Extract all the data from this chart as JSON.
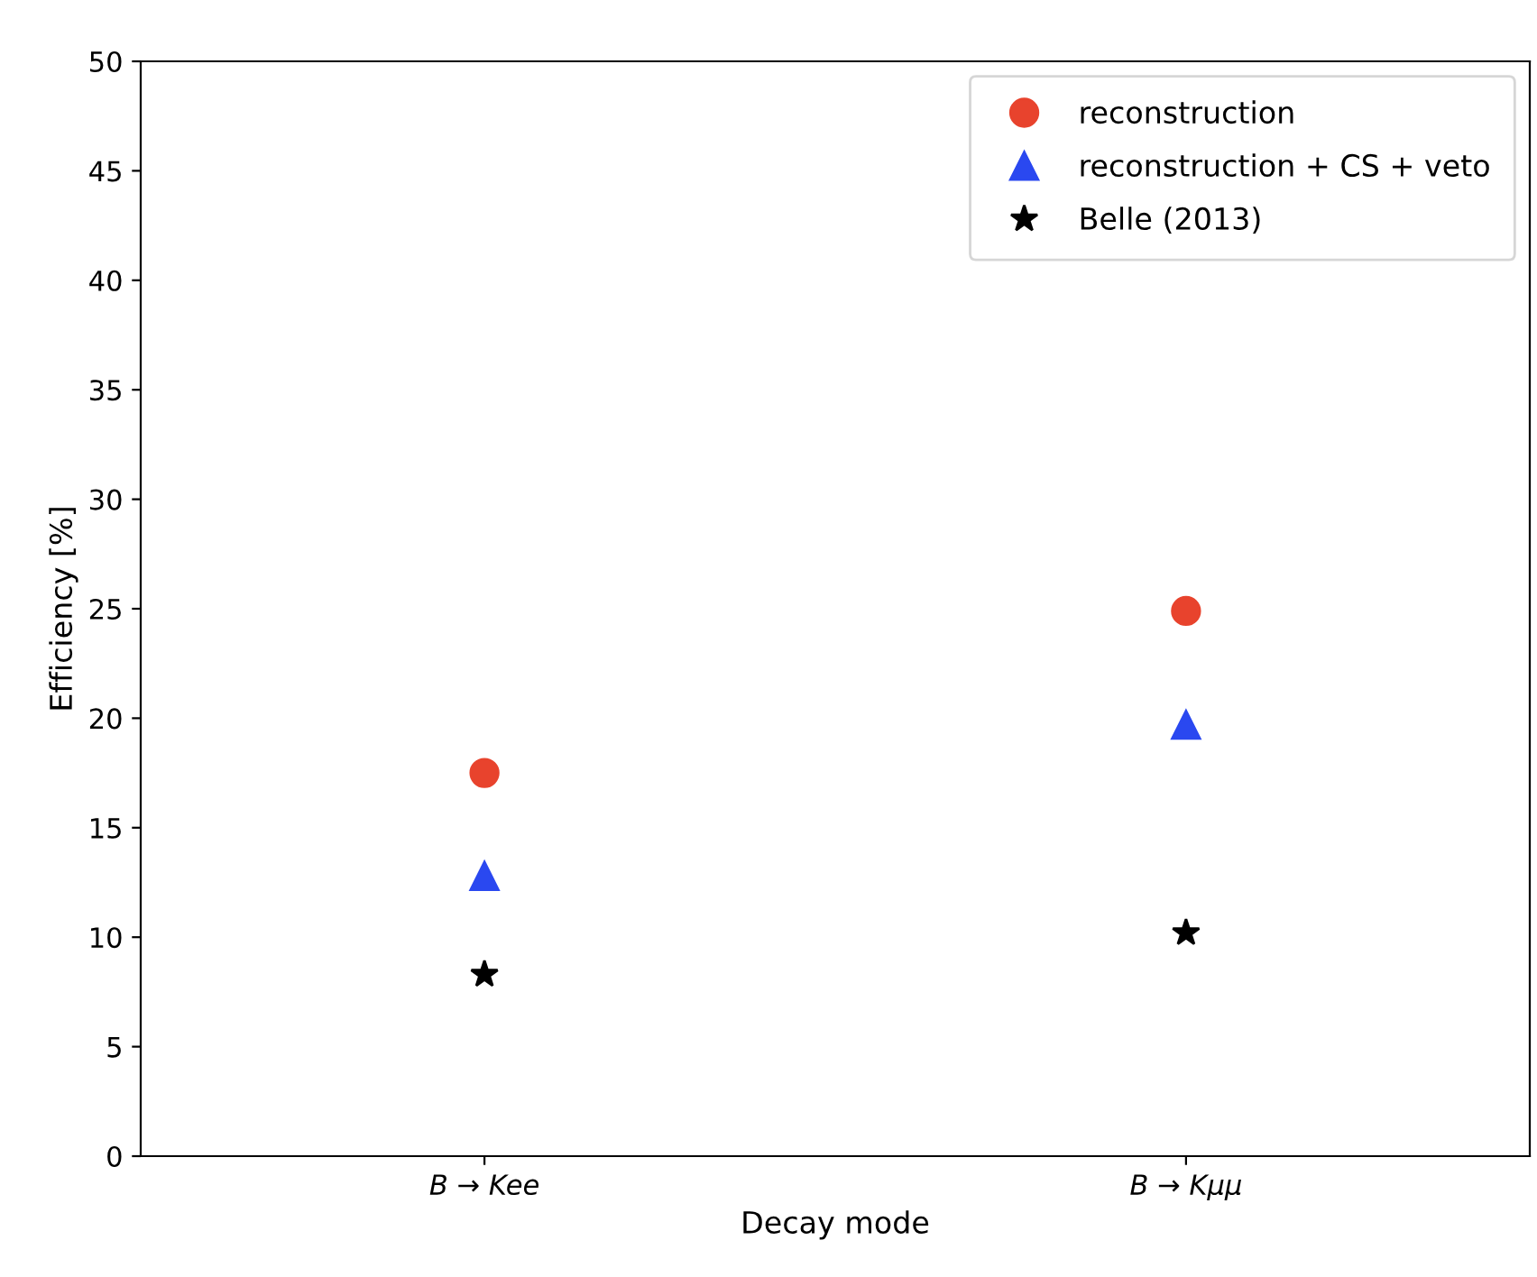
{
  "chart_data": {
    "type": "scatter",
    "xlabel": "Decay mode",
    "ylabel": "Efficiency [%]",
    "categories": [
      "B → Kee",
      "B → Kμμ"
    ],
    "series": [
      {
        "name": "reconstruction",
        "color": "#e8432d",
        "marker": "circle",
        "values": [
          17.5,
          24.9
        ]
      },
      {
        "name": "reconstruction + CS + veto",
        "color": "#2a48f0",
        "marker": "triangle",
        "values": [
          12.8,
          19.7
        ]
      },
      {
        "name": "Belle (2013)",
        "color": "#000000",
        "marker": "star",
        "values": [
          8.3,
          10.2
        ]
      }
    ],
    "ylim": [
      0,
      50
    ],
    "yticks": [
      0,
      5,
      10,
      15,
      20,
      25,
      30,
      35,
      40,
      45,
      50
    ],
    "grid": false,
    "legend": "top right"
  }
}
